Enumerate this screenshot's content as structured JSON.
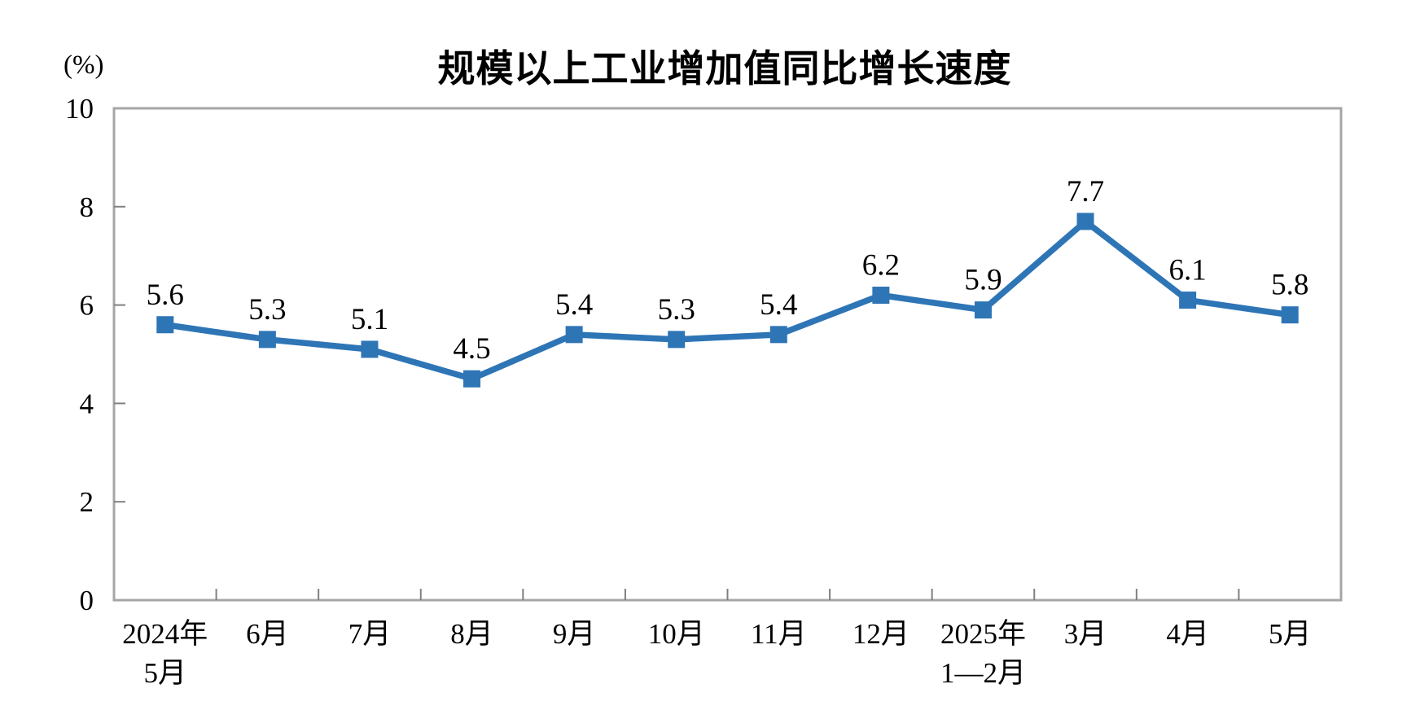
{
  "title": "规模以上工业增加值同比增长速度",
  "unit_label": "(%)",
  "chart_data": {
    "type": "line",
    "title": "规模以上工业增加值同比增长速度",
    "ylabel": "(%)",
    "xlabel": "",
    "categories": [
      [
        "2024年",
        "5月"
      ],
      [
        "6月"
      ],
      [
        "7月"
      ],
      [
        "8月"
      ],
      [
        "9月"
      ],
      [
        "10月"
      ],
      [
        "11月"
      ],
      [
        "12月"
      ],
      [
        "2025年",
        "1—2月"
      ],
      [
        "3月"
      ],
      [
        "4月"
      ],
      [
        "5月"
      ]
    ],
    "series": [
      {
        "name": "规模以上工业增加值同比增长速度",
        "values": [
          5.6,
          5.3,
          5.1,
          4.5,
          5.4,
          5.3,
          5.4,
          6.2,
          5.9,
          7.7,
          6.1,
          5.8
        ]
      }
    ],
    "data_labels": [
      "5.6",
      "5.3",
      "5.1",
      "4.5",
      "5.4",
      "5.3",
      "5.4",
      "6.2",
      "5.9",
      "7.7",
      "6.1",
      "5.8"
    ],
    "ylim": [
      0,
      10
    ],
    "yticks": [
      0,
      2,
      4,
      6,
      8,
      10
    ],
    "grid": false,
    "legend_position": "none",
    "marker": "square",
    "line_color": "#2E75B6",
    "marker_color": "#2E75B6",
    "axis_color": "#A6A6A6",
    "tick_color": "#808080",
    "text_color": "#000000"
  }
}
